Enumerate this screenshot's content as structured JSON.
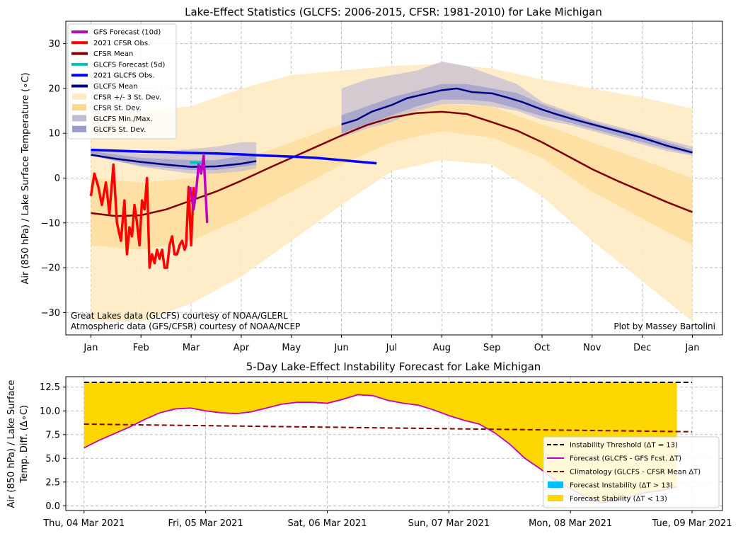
{
  "chart_data": [
    {
      "type": "line",
      "title": "Lake-Effect Statistics (GLCFS: 2006-2015, CFSR: 1981-2010) for Lake Michigan",
      "xlabel": "",
      "ylabel": "Air (850 hPa) / Lake Surface Temperature (∘C)",
      "ylim": [
        -35,
        35
      ],
      "xlim": [
        -0.5,
        12.6
      ],
      "yticks": [
        "−30",
        "−20",
        "−10",
        "0",
        "10",
        "20",
        "30"
      ],
      "ytick_values": [
        -30,
        -20,
        -10,
        0,
        10,
        20,
        30
      ],
      "xticks": [
        "Jan",
        "Feb",
        "Mar",
        "Apr",
        "May",
        "Jun",
        "Jul",
        "Aug",
        "Sep",
        "Oct",
        "Nov",
        "Dec",
        "Jan"
      ],
      "xtick_values": [
        0,
        1,
        2,
        3,
        4,
        5,
        6,
        7,
        8,
        9,
        10,
        11,
        12
      ],
      "grid": true,
      "legend_position": "upper-left",
      "credits": [
        "Great Lakes data (GLCFS) courtesy of NOAA/GLERL",
        "Atmospheric data (GFS/CFSR) courtesy of NOAA/NCEP"
      ],
      "author": "Plot by Massey Bartolini",
      "legend": [
        {
          "label": "GFS Forecast (10d)",
          "color": "#bf00bf",
          "kind": "line"
        },
        {
          "label": "2021 CFSR Obs.",
          "color": "#ff0000",
          "kind": "line"
        },
        {
          "label": "CFSR Mean",
          "color": "#800000",
          "kind": "line"
        },
        {
          "label": "GLCFS Forecast (5d)",
          "color": "#00bfbf",
          "kind": "line"
        },
        {
          "label": "2021 GLCFS Obs.",
          "color": "#0000ff",
          "kind": "line"
        },
        {
          "label": "GLCFS Mean",
          "color": "#000080",
          "kind": "line"
        },
        {
          "label": "CFSR +/- 3 St. Dev.",
          "color": "#ffebc4",
          "kind": "patch"
        },
        {
          "label": "CFSR St. Dev.",
          "color": "#fed78a",
          "kind": "patch"
        },
        {
          "label": "GLCFS Min./Max.",
          "color": "#c2bad1",
          "kind": "patch"
        },
        {
          "label": "GLCFS St. Dev.",
          "color": "#9a9acd",
          "kind": "patch"
        }
      ],
      "series": [
        {
          "name": "CFSR Mean",
          "color": "#800000",
          "x": [
            0,
            0.5,
            1,
            1.5,
            2,
            2.5,
            3,
            3.5,
            4,
            4.5,
            5,
            5.5,
            6,
            6.5,
            7,
            7.5,
            8,
            8.5,
            9,
            9.5,
            10,
            10.5,
            11,
            11.5,
            12
          ],
          "y": [
            -7.8,
            -8.5,
            -8.3,
            -7,
            -5,
            -3,
            -0.6,
            2,
            4.5,
            7,
            9.5,
            11.8,
            13.5,
            14.5,
            14.8,
            14.3,
            12.5,
            10.6,
            8,
            5,
            2,
            -0.6,
            -3,
            -5.4,
            -7.6
          ]
        },
        {
          "name": "GLCFS Mean",
          "color": "#000080",
          "x": [
            0,
            0.5,
            1,
            1.5,
            2,
            2.5,
            3,
            3.3,
            5,
            5.3,
            5.6,
            6,
            6.3,
            6.6,
            7,
            7.3,
            7.6,
            8,
            8.3,
            8.6,
            9,
            9.3,
            9.6,
            10,
            10.5,
            11,
            11.5,
            12
          ],
          "y": [
            5.2,
            4.3,
            3.6,
            3,
            2.5,
            2.6,
            3.2,
            3.8,
            12,
            13,
            14.8,
            16.3,
            17.8,
            18.6,
            19.6,
            20,
            19.2,
            18.9,
            18,
            17,
            15.3,
            14.2,
            13.2,
            12,
            10.5,
            9,
            7.2,
            5.7
          ]
        },
        {
          "name": "2021 GLCFS Obs.",
          "color": "#0000ff",
          "x": [
            0,
            0.5,
            1,
            1.5,
            2,
            2.5,
            3,
            3.5,
            4,
            4.5,
            5,
            5.3,
            5.7
          ],
          "y": [
            6.3,
            6.1,
            5.9,
            5.8,
            5.6,
            5.5,
            5.3,
            5,
            4.8,
            4.5,
            4,
            3.7,
            3.3
          ]
        },
        {
          "name": "2021 CFSR Obs.",
          "color": "#ff0000",
          "x": [
            0,
            0.07,
            0.15,
            0.22,
            0.3,
            0.37,
            0.45,
            0.52,
            0.6,
            0.67,
            0.72,
            0.77,
            0.82,
            0.87,
            0.92,
            0.97,
            1.02,
            1.07,
            1.12,
            1.17,
            1.22,
            1.27,
            1.32,
            1.37,
            1.42,
            1.47,
            1.52,
            1.57,
            1.62,
            1.67,
            1.72,
            1.77,
            1.82,
            1.87,
            1.9,
            1.95,
            2.0,
            2.05
          ],
          "y": [
            -4,
            1,
            -2,
            -6,
            -1,
            -8,
            3,
            -10,
            -14,
            -5,
            -17,
            -11,
            -13,
            -6,
            -10,
            -15,
            -5,
            -7,
            0,
            -20,
            -17,
            -19,
            -16,
            -18,
            -16,
            -20,
            -20,
            -15,
            -13,
            -17,
            -17,
            -15,
            -14,
            -16,
            -15,
            -2,
            -15,
            -2
          ]
        },
        {
          "name": "GFS Forecast (10d)",
          "color": "#bf00bf",
          "x": [
            1.98,
            2.05,
            2.1,
            2.15,
            2.2,
            2.25,
            2.32
          ],
          "y": [
            -2,
            -7,
            -3,
            3,
            1,
            5,
            -10
          ]
        },
        {
          "name": "GLCFS Forecast (5d)",
          "color": "#00bfbf",
          "x": [
            1.98,
            2.2
          ],
          "y": [
            3.5,
            3.4
          ]
        }
      ],
      "bands": [
        {
          "name": "CFSR +/- 3 St. Dev.",
          "color": "#ffebc4",
          "x": [
            0,
            1,
            2,
            3,
            4,
            5,
            6,
            7,
            8,
            9,
            10,
            11,
            12
          ],
          "lower": [
            -32,
            -32,
            -28,
            -22,
            -14,
            -6,
            1.5,
            4,
            3,
            -4,
            -14,
            -23,
            -32
          ],
          "upper": [
            15,
            15,
            16,
            20,
            23,
            24,
            25,
            25.5,
            24.5,
            22,
            20,
            18,
            15.5
          ]
        },
        {
          "name": "CFSR St. Dev.",
          "color": "#fed78a",
          "x": [
            0,
            1,
            2,
            3,
            4,
            5,
            6,
            7,
            8,
            9,
            10,
            11,
            12
          ],
          "lower": [
            -15,
            -16,
            -14,
            -9,
            -3,
            3,
            8,
            10.5,
            9,
            4.5,
            -3,
            -9,
            -15
          ],
          "upper": [
            0,
            -1,
            0,
            4,
            8,
            12,
            15,
            16.5,
            16,
            12,
            8,
            4,
            0
          ]
        },
        {
          "name": "GLCFS Min./Max.",
          "color": "#c2bad1",
          "x": [
            0,
            1,
            2,
            2.5,
            3,
            3.3,
            5,
            5.5,
            6,
            6.5,
            7,
            7.5,
            8,
            8.5,
            9,
            9.5,
            10,
            10.5,
            11,
            11.5,
            12
          ],
          "lower": [
            5,
            2.5,
            1,
            1,
            1.5,
            2.2,
            9,
            11,
            12.5,
            15,
            16.5,
            16.5,
            16,
            15,
            13,
            12,
            10.5,
            9,
            7.5,
            6,
            5
          ],
          "upper": [
            6.5,
            5.5,
            6.5,
            7,
            8,
            8,
            20,
            22,
            23,
            24,
            26,
            25,
            23,
            21,
            17,
            15,
            13,
            11.5,
            10,
            8.5,
            7
          ]
        },
        {
          "name": "GLCFS St. Dev.",
          "color": "#9a9acd",
          "x": [
            0,
            1,
            2,
            2.5,
            3,
            3.3,
            5,
            5.5,
            6,
            6.5,
            7,
            7.5,
            8,
            8.5,
            9,
            9.5,
            10,
            10.5,
            11,
            11.5,
            12
          ],
          "lower": [
            5,
            2.8,
            1.8,
            1.8,
            2.5,
            3,
            10,
            12,
            14,
            16,
            17.5,
            17.5,
            17,
            15.5,
            13.8,
            12.5,
            11,
            9.5,
            8,
            6.5,
            5.3
          ],
          "upper": [
            6,
            4.5,
            4,
            4,
            5,
            5,
            14,
            16,
            18,
            19.5,
            21,
            21,
            20,
            19,
            16.5,
            14.5,
            12.5,
            11,
            9.5,
            8,
            6.3
          ]
        }
      ]
    },
    {
      "type": "line",
      "title": "5-Day Lake-Effect Instability Forecast for Lake Michigan",
      "xlabel": "",
      "ylabel_lines": [
        "Air (850 hPa) / Lake Surface",
        "Temp. Diff. (Δ∘C)"
      ],
      "ylim": [
        -0.5,
        13.6
      ],
      "xlim": [
        -0.15,
        5.25
      ],
      "yticks": [
        "0.0",
        "2.5",
        "5.0",
        "7.5",
        "10.0",
        "12.5"
      ],
      "ytick_values": [
        0,
        2.5,
        5,
        7.5,
        10,
        12.5
      ],
      "xticks": [
        "Thu, 04 Mar 2021",
        "Fri, 05 Mar 2021",
        "Sat, 06 Mar 2021",
        "Sun, 07 Mar 2021",
        "Mon, 08 Mar 2021",
        "Tue, 09 Mar 2021"
      ],
      "xtick_values": [
        0,
        1,
        2,
        3,
        4,
        5
      ],
      "grid": true,
      "legend_position": "lower-right",
      "threshold": 13,
      "legend": [
        {
          "label": "Instability Threshold (ΔT = 13)",
          "color": "#000000",
          "kind": "dashed"
        },
        {
          "label": "Forecast (GLCFS - GFS Fcst. ΔT)",
          "color": "#bf00bf",
          "kind": "line"
        },
        {
          "label": "Climatology (GLCFS - CFSR Mean ΔT)",
          "color": "#800000",
          "kind": "dashed"
        },
        {
          "label": "Forecast Instability (ΔT > 13)",
          "color": "#00bfff",
          "kind": "patch"
        },
        {
          "label": "Forecast Stability (ΔT < 13)",
          "color": "#ffd700",
          "kind": "patch"
        }
      ],
      "series": [
        {
          "name": "Forecast (GLCFS - GFS Fcst. ΔT)",
          "color": "#bf00bf",
          "x": [
            0,
            0.125,
            0.25,
            0.375,
            0.5,
            0.625,
            0.75,
            0.875,
            1,
            1.125,
            1.25,
            1.375,
            1.5,
            1.625,
            1.75,
            1.875,
            2,
            2.125,
            2.25,
            2.375,
            2.5,
            2.625,
            2.75,
            2.875,
            3,
            3.125,
            3.25,
            3.375,
            3.5,
            3.625,
            3.75,
            3.875,
            4,
            4.125,
            4.25,
            4.375,
            4.5,
            4.625,
            4.75,
            4.875
          ],
          "y": [
            6.1,
            6.9,
            7.6,
            8.3,
            9.1,
            9.8,
            10.2,
            10.3,
            10.0,
            9.8,
            9.7,
            9.9,
            10.3,
            10.7,
            10.9,
            10.9,
            10.8,
            11.2,
            11.7,
            11.6,
            11.1,
            10.8,
            10.6,
            10.1,
            9.5,
            9.0,
            8.6,
            7.7,
            6.5,
            5.0,
            3.9,
            2.7,
            1.8,
            0.9,
            0.3,
            0.6,
            1.0,
            1.4,
            1.6,
            2.0
          ]
        },
        {
          "name": "Climatology (GLCFS - CFSR Mean ΔT)",
          "color": "#800000",
          "x": [
            0,
            5
          ],
          "y": [
            8.6,
            7.8
          ]
        },
        {
          "name": "Instability Threshold (ΔT = 13)",
          "color": "#000000",
          "x": [
            0,
            5
          ],
          "y": [
            13,
            13
          ]
        }
      ]
    }
  ]
}
